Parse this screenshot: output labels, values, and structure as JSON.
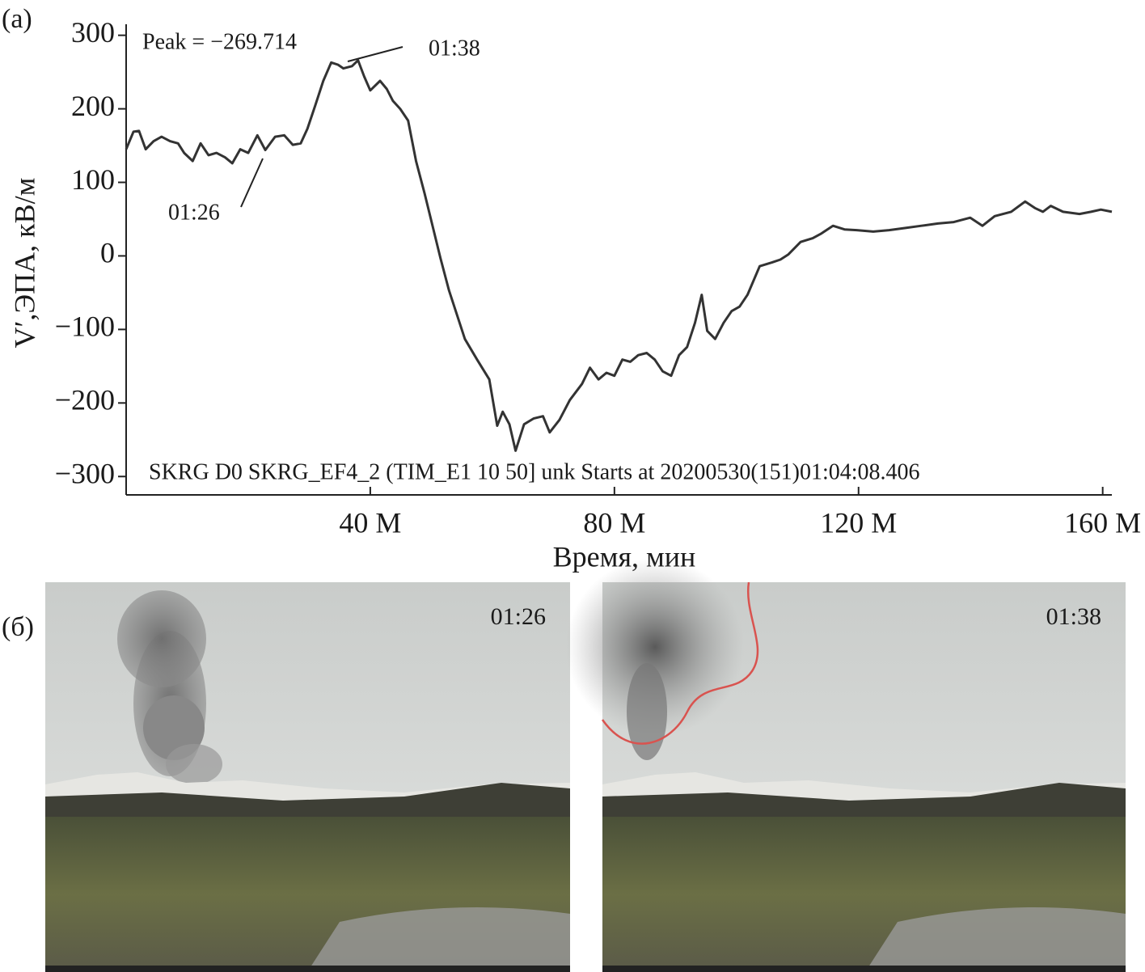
{
  "panel_labels": [
    "(a)",
    "(б)"
  ],
  "chart_data": {
    "type": "line",
    "xlabel": "Время, мин",
    "ylabel": "V′,ЭПА, кВ/м",
    "annotations": [
      "Peak = −269.714",
      "01:38",
      "01:26",
      "SKRG D0 SKRG_EF4_2 (TIM_E1 10 50] unk Starts at 20200530(151)01:04:08.406"
    ],
    "xlim": [
      0,
      161.5
    ],
    "ylim": [
      -325,
      315
    ],
    "xticks": [
      {
        "value": 40,
        "label": "40 M"
      },
      {
        "value": 80,
        "label": "80 M"
      },
      {
        "value": 120,
        "label": "120 M"
      },
      {
        "value": 160,
        "label": "160 M"
      }
    ],
    "yticks": [
      300,
      200,
      100,
      0,
      {
        "value": -100,
        "label": "−100"
      },
      {
        "value": -200,
        "label": "−200"
      },
      {
        "value": -300,
        "label": "−300"
      }
    ],
    "series": [
      {
        "color": "#333333",
        "x": [
          0,
          1.2,
          2.1,
          3.2,
          4.5,
          5.8,
          7.2,
          8.5,
          9.5,
          10.9,
          12.2,
          13.5,
          14.8,
          16.2,
          17.4,
          18.7,
          20,
          21.5,
          22.8,
          24.4,
          25.9,
          27.3,
          28.6,
          29.7,
          31,
          32.3,
          33.6,
          34.7,
          35.6,
          37,
          38,
          39,
          40,
          41.6,
          42.7,
          43.7,
          44.9,
          46.2,
          47.5,
          48.9,
          50.2,
          51.5,
          52.9,
          54.2,
          55.5,
          57.5,
          59.5,
          60.8,
          61.7,
          62.8,
          63.8,
          65.2,
          66.8,
          68.3,
          69.4,
          71,
          72.7,
          74.7,
          76,
          77.4,
          78.7,
          80,
          81.3,
          82.6,
          83.9,
          85.3,
          86.6,
          87.9,
          89.3,
          90.6,
          91.9,
          93.2,
          94.3,
          95.2,
          96.5,
          97.9,
          99.2,
          100.5,
          101.8,
          103.8,
          105.8,
          107.2,
          108.5,
          110.5,
          112.5,
          113.8,
          115.8,
          117.7,
          119.7,
          122.4,
          125,
          127.7,
          130.3,
          133,
          135.6,
          138.3,
          140.3,
          142.3,
          145,
          147.3,
          148.9,
          150.2,
          151.5,
          153.5,
          156.2,
          158.1,
          159.7,
          161.5
        ],
        "values": [
          145,
          169,
          170,
          145,
          156,
          162,
          156,
          153,
          140,
          129,
          153,
          137,
          140,
          134,
          126,
          145,
          140,
          164,
          144,
          162,
          164,
          151,
          153,
          173,
          205,
          238,
          263,
          260,
          255,
          258,
          266,
          244,
          225,
          238,
          227,
          211,
          200,
          184,
          129,
          85,
          41,
          -3,
          -47,
          -80,
          -113,
          -141,
          -168,
          -231,
          -212,
          -229,
          -265,
          -229,
          -221,
          -218,
          -240,
          -223,
          -196,
          -174,
          -152,
          -168,
          -159,
          -163,
          -141,
          -144,
          -135,
          -132,
          -141,
          -157,
          -163,
          -135,
          -124,
          -91,
          -53,
          -102,
          -113,
          -91,
          -75,
          -69,
          -53,
          -14,
          -9,
          -5,
          2,
          19,
          24,
          30,
          41,
          36,
          35,
          33,
          35,
          38,
          41,
          44,
          46,
          52,
          41,
          54,
          60,
          74,
          65,
          60,
          68,
          60,
          57,
          60,
          63,
          60
        ]
      }
    ]
  },
  "photos": [
    {
      "time": "01:26"
    },
    {
      "time": "01:38"
    }
  ]
}
